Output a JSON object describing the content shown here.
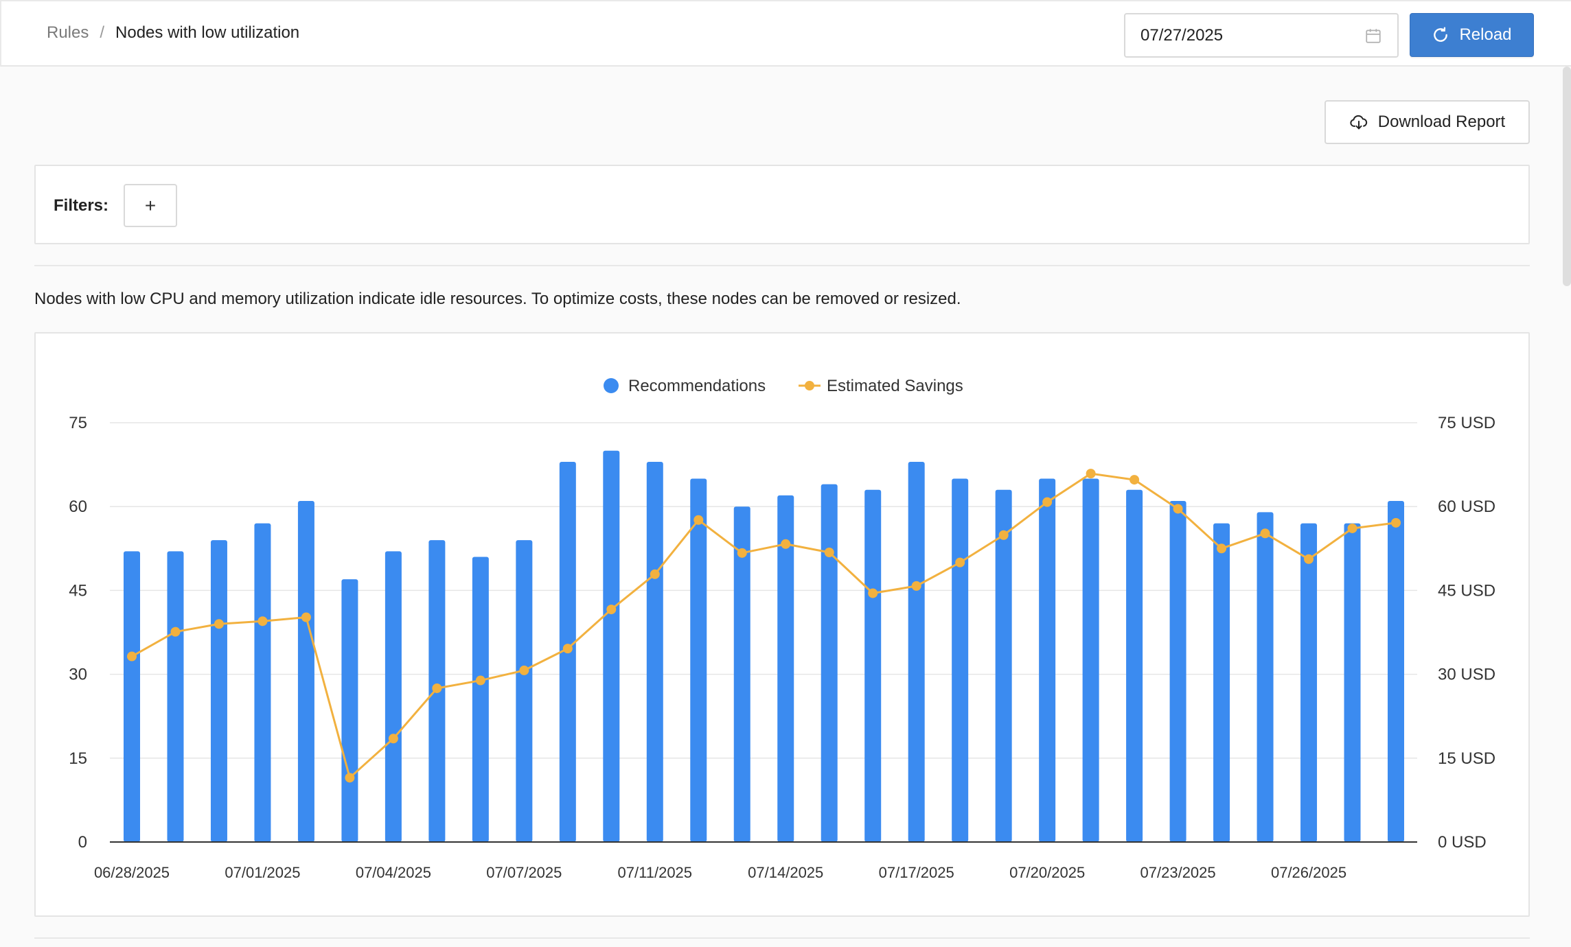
{
  "header": {
    "breadcrumb": {
      "parent": "Rules",
      "separator": "/",
      "current": "Nodes with low utilization"
    },
    "date_value": "07/27/2025",
    "reload_label": "Reload"
  },
  "toolbar": {
    "download_label": "Download Report"
  },
  "filters": {
    "label": "Filters:",
    "add_label": "+"
  },
  "description": "Nodes with low CPU and memory utilization indicate idle resources. To optimize costs, these nodes can be removed or resized.",
  "colors": {
    "accent": "#3d7fd1",
    "bar": "#3b8bf0",
    "line": "#f2b13f"
  },
  "icons": {
    "calendar": "calendar-icon",
    "reload": "reload-icon",
    "download": "cloud-download-icon"
  },
  "chart_data": {
    "type": "bar",
    "title": "",
    "legend": [
      "Recommendations",
      "Estimated Savings"
    ],
    "legend_position": "top-center",
    "grid": true,
    "x": [
      "06/28/2025",
      "06/29/2025",
      "06/30/2025",
      "07/01/2025",
      "07/02/2025",
      "07/03/2025",
      "07/04/2025",
      "07/05/2025",
      "07/06/2025",
      "07/07/2025",
      "07/08/2025",
      "07/10/2025",
      "07/11/2025",
      "07/12/2025",
      "07/13/2025",
      "07/14/2025",
      "07/15/2025",
      "07/16/2025",
      "07/17/2025",
      "07/18/2025",
      "07/19/2025",
      "07/20/2025",
      "07/21/2025",
      "07/22/2025",
      "07/23/2025",
      "07/24/2025",
      "07/25/2025",
      "07/26/2025",
      "07/27/2025",
      "07/28/2025"
    ],
    "x_tick_labels": [
      "06/28/2025",
      "07/01/2025",
      "07/04/2025",
      "07/07/2025",
      "07/11/2025",
      "07/14/2025",
      "07/17/2025",
      "07/20/2025",
      "07/23/2025",
      "07/26/2025"
    ],
    "y_left": {
      "ticks": [
        "0",
        "15",
        "30",
        "45",
        "60",
        "75"
      ],
      "ylim": [
        0,
        75
      ]
    },
    "y_right": {
      "ticks": [
        "0 USD",
        "15 USD",
        "30 USD",
        "45 USD",
        "60 USD",
        "75 USD"
      ],
      "ylim": [
        0,
        75
      ]
    },
    "series": [
      {
        "name": "Recommendations",
        "type": "bar",
        "values": [
          52,
          52,
          54,
          57,
          61,
          47,
          52,
          54,
          51,
          54,
          68,
          70,
          68,
          65,
          60,
          62,
          64,
          63,
          68,
          65,
          63,
          65,
          65,
          63,
          61,
          57,
          59,
          57,
          57,
          61
        ]
      },
      {
        "name": "Estimated Savings",
        "type": "line",
        "values": [
          33.2,
          37.6,
          39.0,
          39.5,
          40.2,
          11.5,
          18.5,
          27.5,
          28.9,
          30.7,
          34.6,
          41.6,
          47.9,
          57.6,
          51.7,
          53.3,
          51.8,
          44.5,
          45.8,
          50.0,
          54.9,
          60.8,
          65.9,
          64.8,
          59.6,
          52.5,
          55.2,
          50.6,
          56.1,
          57.1
        ]
      }
    ]
  }
}
